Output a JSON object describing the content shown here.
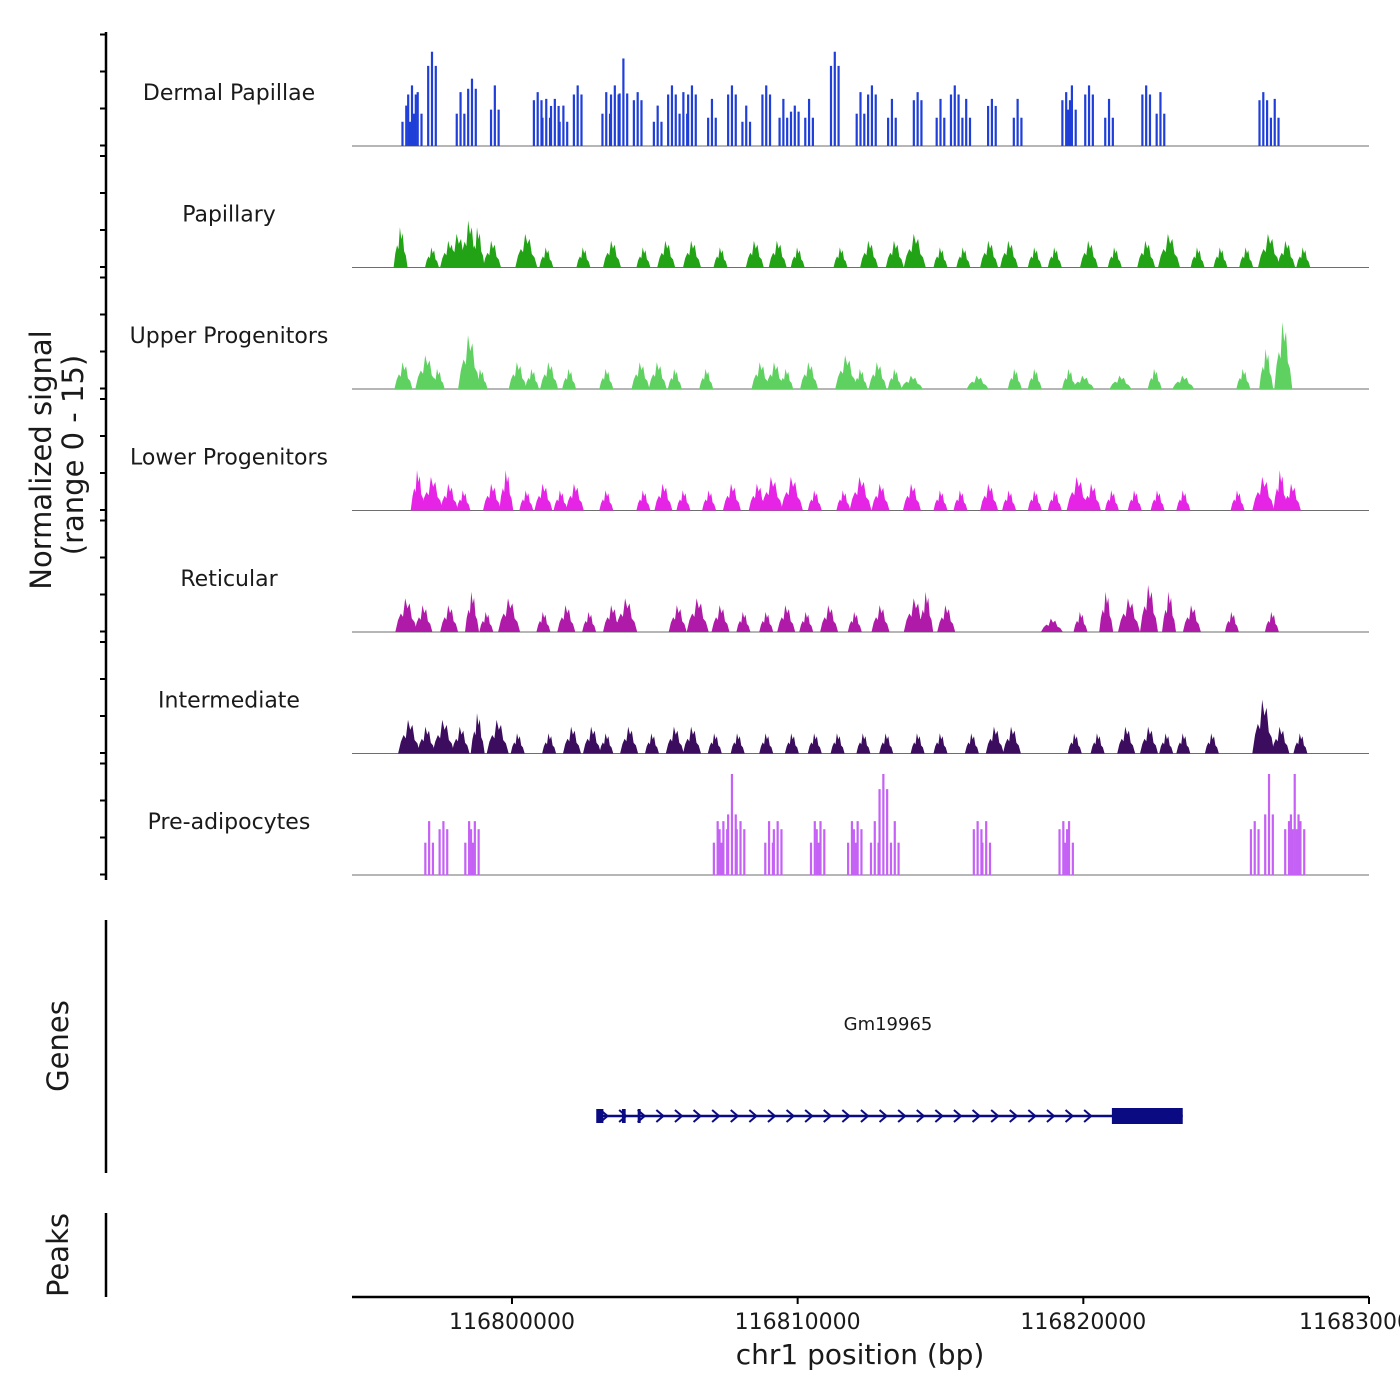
{
  "chart_data": {
    "type": "area",
    "title": "",
    "ylabel_line1": "Normalized signal",
    "ylabel_line2": "(range 0 - 15)",
    "xlabel": "chr1 position (bp)",
    "genes_label": "Genes",
    "peaks_label": "Peaks",
    "ylim": [
      0,
      15
    ],
    "xlim": [
      116794400,
      116830000
    ],
    "x_ticks": [
      116800000,
      116810000,
      116820000,
      116830000
    ],
    "x_tick_labels": [
      "116800000",
      "116810000",
      "116820000",
      "116830000"
    ],
    "tracks": [
      {
        "name": "Dermal Papillae",
        "color": "#1f3fd8",
        "style": "bars",
        "peaks": [
          [
            116796300,
            6
          ],
          [
            116796500,
            9
          ],
          [
            116796700,
            8
          ],
          [
            116797200,
            14
          ],
          [
            116798200,
            8
          ],
          [
            116798600,
            10
          ],
          [
            116799400,
            9
          ],
          [
            116800900,
            8
          ],
          [
            116801200,
            7
          ],
          [
            116801500,
            7
          ],
          [
            116801800,
            6
          ],
          [
            116802300,
            9
          ],
          [
            116803300,
            8
          ],
          [
            116803600,
            9
          ],
          [
            116803900,
            13
          ],
          [
            116804400,
            8
          ],
          [
            116805100,
            6
          ],
          [
            116805600,
            9
          ],
          [
            116806000,
            8
          ],
          [
            116806300,
            9
          ],
          [
            116807000,
            7
          ],
          [
            116807700,
            9
          ],
          [
            116808200,
            6
          ],
          [
            116808900,
            9
          ],
          [
            116809500,
            7
          ],
          [
            116809900,
            6
          ],
          [
            116810400,
            7
          ],
          [
            116811300,
            14
          ],
          [
            116812200,
            8
          ],
          [
            116812600,
            9
          ],
          [
            116813300,
            7
          ],
          [
            116814200,
            8
          ],
          [
            116815000,
            7
          ],
          [
            116815500,
            9
          ],
          [
            116815900,
            7
          ],
          [
            116816800,
            7
          ],
          [
            116817700,
            7
          ],
          [
            116819400,
            8
          ],
          [
            116819600,
            9
          ],
          [
            116820200,
            9
          ],
          [
            116820900,
            7
          ],
          [
            116822200,
            9
          ],
          [
            116822700,
            8
          ],
          [
            116826300,
            8
          ],
          [
            116826700,
            7
          ]
        ]
      },
      {
        "name": "Papillary",
        "color": "#22a315",
        "style": "area",
        "peaks": [
          [
            116796100,
            6
          ],
          [
            116797200,
            3
          ],
          [
            116797800,
            4
          ],
          [
            116798100,
            5
          ],
          [
            116798500,
            7
          ],
          [
            116798800,
            6
          ],
          [
            116799300,
            4
          ],
          [
            116800500,
            5
          ],
          [
            116801200,
            3
          ],
          [
            116802500,
            3
          ],
          [
            116803500,
            4
          ],
          [
            116804600,
            3
          ],
          [
            116805400,
            4
          ],
          [
            116806300,
            4
          ],
          [
            116807300,
            3
          ],
          [
            116808500,
            4
          ],
          [
            116809300,
            4
          ],
          [
            116810000,
            3
          ],
          [
            116811500,
            3
          ],
          [
            116812500,
            4
          ],
          [
            116813400,
            4
          ],
          [
            116814100,
            5
          ],
          [
            116815000,
            3
          ],
          [
            116815800,
            3
          ],
          [
            116816700,
            4
          ],
          [
            116817400,
            4
          ],
          [
            116818300,
            3
          ],
          [
            116819000,
            3
          ],
          [
            116820200,
            4
          ],
          [
            116821100,
            3
          ],
          [
            116822200,
            4
          ],
          [
            116823000,
            5
          ],
          [
            116824000,
            3
          ],
          [
            116824800,
            3
          ],
          [
            116825700,
            3
          ],
          [
            116826500,
            5
          ],
          [
            116827100,
            4
          ],
          [
            116827700,
            3
          ]
        ]
      },
      {
        "name": "Upper Progenitors",
        "color": "#5ed160",
        "style": "area",
        "peaks": [
          [
            116796200,
            4
          ],
          [
            116797000,
            5
          ],
          [
            116797400,
            3
          ],
          [
            116798500,
            8
          ],
          [
            116798900,
            3
          ],
          [
            116800200,
            4
          ],
          [
            116800700,
            3
          ],
          [
            116801300,
            4
          ],
          [
            116802000,
            3
          ],
          [
            116803300,
            3
          ],
          [
            116804500,
            4
          ],
          [
            116805100,
            4
          ],
          [
            116805700,
            3
          ],
          [
            116806800,
            3
          ],
          [
            116808700,
            4
          ],
          [
            116809200,
            4
          ],
          [
            116809600,
            3
          ],
          [
            116810400,
            4
          ],
          [
            116811700,
            5
          ],
          [
            116812200,
            3
          ],
          [
            116812800,
            4
          ],
          [
            116813400,
            3
          ],
          [
            116814000,
            2
          ],
          [
            116816300,
            2
          ],
          [
            116817600,
            3
          ],
          [
            116818300,
            3
          ],
          [
            116819500,
            3
          ],
          [
            116820000,
            2
          ],
          [
            116821300,
            2
          ],
          [
            116822500,
            3
          ],
          [
            116823500,
            2
          ],
          [
            116825600,
            3
          ],
          [
            116826400,
            6
          ],
          [
            116827000,
            10
          ]
        ]
      },
      {
        "name": "Lower Progenitors",
        "color": "#e624e6",
        "style": "area",
        "peaks": [
          [
            116796700,
            6
          ],
          [
            116797200,
            5
          ],
          [
            116797800,
            4
          ],
          [
            116798300,
            3
          ],
          [
            116799300,
            4
          ],
          [
            116799800,
            6
          ],
          [
            116800500,
            3
          ],
          [
            116801100,
            4
          ],
          [
            116801700,
            3
          ],
          [
            116802200,
            4
          ],
          [
            116803300,
            3
          ],
          [
            116804600,
            3
          ],
          [
            116805300,
            4
          ],
          [
            116806000,
            3
          ],
          [
            116806900,
            3
          ],
          [
            116807700,
            4
          ],
          [
            116808600,
            4
          ],
          [
            116809100,
            5
          ],
          [
            116809800,
            5
          ],
          [
            116810600,
            3
          ],
          [
            116811600,
            3
          ],
          [
            116812200,
            5
          ],
          [
            116812900,
            4
          ],
          [
            116814000,
            4
          ],
          [
            116815000,
            3
          ],
          [
            116815700,
            3
          ],
          [
            116816700,
            4
          ],
          [
            116817400,
            3
          ],
          [
            116818300,
            3
          ],
          [
            116819000,
            3
          ],
          [
            116819800,
            5
          ],
          [
            116820300,
            4
          ],
          [
            116821000,
            3
          ],
          [
            116821800,
            3
          ],
          [
            116822600,
            3
          ],
          [
            116823500,
            3
          ],
          [
            116825400,
            3
          ],
          [
            116826300,
            5
          ],
          [
            116826900,
            6
          ],
          [
            116827300,
            4
          ]
        ]
      },
      {
        "name": "Reticular",
        "color": "#b01aa8",
        "style": "area",
        "peaks": [
          [
            116796300,
            5
          ],
          [
            116796900,
            4
          ],
          [
            116797800,
            4
          ],
          [
            116798600,
            6
          ],
          [
            116799100,
            3
          ],
          [
            116799900,
            5
          ],
          [
            116801100,
            3
          ],
          [
            116801900,
            4
          ],
          [
            116802700,
            3
          ],
          [
            116803500,
            4
          ],
          [
            116804000,
            5
          ],
          [
            116805800,
            4
          ],
          [
            116806500,
            5
          ],
          [
            116807300,
            4
          ],
          [
            116808100,
            3
          ],
          [
            116808900,
            3
          ],
          [
            116809600,
            4
          ],
          [
            116810300,
            3
          ],
          [
            116811100,
            4
          ],
          [
            116812000,
            3
          ],
          [
            116812900,
            4
          ],
          [
            116814100,
            5
          ],
          [
            116814500,
            6
          ],
          [
            116815200,
            4
          ],
          [
            116818900,
            2
          ],
          [
            116819900,
            3
          ],
          [
            116820800,
            6
          ],
          [
            116821600,
            5
          ],
          [
            116822300,
            7
          ],
          [
            116823000,
            6
          ],
          [
            116823800,
            4
          ],
          [
            116825200,
            3
          ],
          [
            116826600,
            3
          ]
        ]
      },
      {
        "name": "Intermediate",
        "color": "#3c0d5e",
        "style": "area",
        "peaks": [
          [
            116796400,
            5
          ],
          [
            116797000,
            4
          ],
          [
            116797600,
            5
          ],
          [
            116798200,
            4
          ],
          [
            116798800,
            6
          ],
          [
            116799500,
            5
          ],
          [
            116800200,
            3
          ],
          [
            116801300,
            3
          ],
          [
            116802100,
            4
          ],
          [
            116802800,
            4
          ],
          [
            116803300,
            3
          ],
          [
            116804100,
            4
          ],
          [
            116804900,
            3
          ],
          [
            116805700,
            4
          ],
          [
            116806300,
            4
          ],
          [
            116807100,
            3
          ],
          [
            116807900,
            3
          ],
          [
            116808900,
            3
          ],
          [
            116809800,
            3
          ],
          [
            116810600,
            3
          ],
          [
            116811400,
            3
          ],
          [
            116812300,
            3
          ],
          [
            116813100,
            3
          ],
          [
            116814200,
            3
          ],
          [
            116815000,
            3
          ],
          [
            116816100,
            3
          ],
          [
            116816900,
            4
          ],
          [
            116817500,
            4
          ],
          [
            116819700,
            3
          ],
          [
            116820500,
            3
          ],
          [
            116821500,
            4
          ],
          [
            116822300,
            4
          ],
          [
            116822900,
            3
          ],
          [
            116823500,
            3
          ],
          [
            116824500,
            3
          ],
          [
            116826300,
            8
          ],
          [
            116826900,
            4
          ],
          [
            116827600,
            3
          ]
        ]
      },
      {
        "name": "Pre-adipocytes",
        "color": "#c561f5",
        "style": "bars",
        "peaks": [
          [
            116797100,
            8
          ],
          [
            116797600,
            8
          ],
          [
            116798500,
            8
          ],
          [
            116798700,
            8
          ],
          [
            116807200,
            8
          ],
          [
            116807400,
            8
          ],
          [
            116807700,
            15
          ],
          [
            116808000,
            8
          ],
          [
            116809000,
            8
          ],
          [
            116809300,
            8
          ],
          [
            116810600,
            8
          ],
          [
            116810800,
            8
          ],
          [
            116811900,
            8
          ],
          [
            116812100,
            8
          ],
          [
            116812700,
            8
          ],
          [
            116813000,
            15
          ],
          [
            116813400,
            8
          ],
          [
            116816300,
            8
          ],
          [
            116816600,
            8
          ],
          [
            116819300,
            8
          ],
          [
            116819500,
            8
          ],
          [
            116826000,
            8
          ],
          [
            116826500,
            15
          ],
          [
            116827200,
            8
          ],
          [
            116827400,
            15
          ],
          [
            116827600,
            8
          ]
        ]
      }
    ],
    "gene": {
      "name": "Gm19965",
      "strand": "+",
      "start": 116802960,
      "end": 116823480,
      "exons": [
        [
          116802950,
          116803200
        ],
        [
          116803850,
          116803980
        ],
        [
          116804400,
          116804450
        ],
        [
          116821000,
          116823480
        ]
      ],
      "color": "#0a0a82"
    },
    "peaks_track": []
  }
}
